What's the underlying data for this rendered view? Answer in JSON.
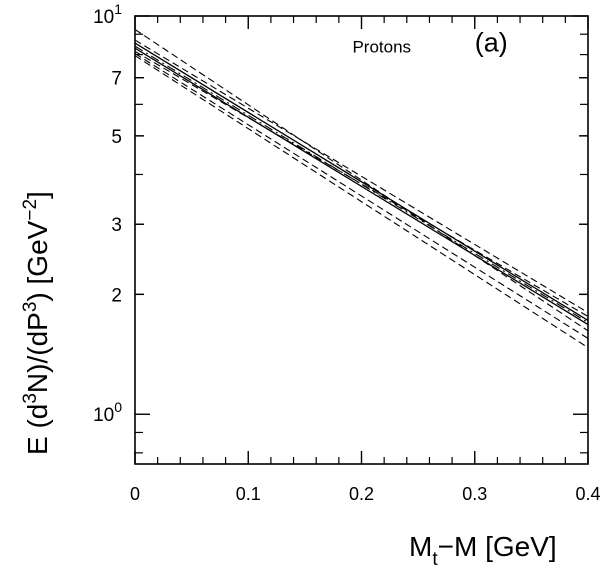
{
  "chart_data": {
    "type": "line",
    "title": "",
    "annotation": "Protons",
    "panel_label": "(a)",
    "xlabel": {
      "main": "M",
      "sub": "t",
      "rest": "−M  [GeV]"
    },
    "ylabel": {
      "e": "E (d",
      "sup1": "3",
      "n": "N)/(dP",
      "sup2": "3",
      "close": ")  [GeV",
      "sup3": "−2",
      "end": "]"
    },
    "xlim": [
      0,
      0.4
    ],
    "ylim": [
      0.75,
      10
    ],
    "yscale": "log",
    "x_ticks": [
      {
        "value": 0,
        "label": "0"
      },
      {
        "value": 0.1,
        "label": "0.1"
      },
      {
        "value": 0.2,
        "label": "0.2"
      },
      {
        "value": 0.3,
        "label": "0.3"
      },
      {
        "value": 0.4,
        "label": "0.4"
      }
    ],
    "y_ticks": [
      {
        "value": 10,
        "base": "10",
        "exp": "1"
      },
      {
        "value": 7,
        "base": "7",
        "exp": ""
      },
      {
        "value": 5,
        "base": "5",
        "exp": ""
      },
      {
        "value": 3,
        "base": "3",
        "exp": ""
      },
      {
        "value": 2,
        "base": "2",
        "exp": ""
      },
      {
        "value": 1,
        "base": "10",
        "exp": "0"
      }
    ],
    "series": [
      {
        "style": "solid",
        "x": [
          0,
          0.4
        ],
        "y": [
          8.55,
          1.72
        ]
      },
      {
        "style": "solid",
        "x": [
          0,
          0.4
        ],
        "y": [
          8.3,
          1.68
        ]
      },
      {
        "style": "dash",
        "x": [
          0,
          0.4
        ],
        "y": [
          9.25,
          1.62
        ]
      },
      {
        "style": "dash",
        "x": [
          0,
          0.4
        ],
        "y": [
          8.7,
          1.8
        ]
      },
      {
        "style": "dash",
        "x": [
          0,
          0.4
        ],
        "y": [
          8.15,
          1.76
        ]
      },
      {
        "style": "dash",
        "x": [
          0,
          0.4
        ],
        "y": [
          8.05,
          1.55
        ]
      },
      {
        "style": "dash",
        "x": [
          0,
          0.4
        ],
        "y": [
          7.95,
          1.47
        ]
      },
      {
        "style": "dashdot",
        "x": [
          0,
          0.4
        ],
        "y": [
          8.4,
          1.7
        ]
      }
    ]
  }
}
